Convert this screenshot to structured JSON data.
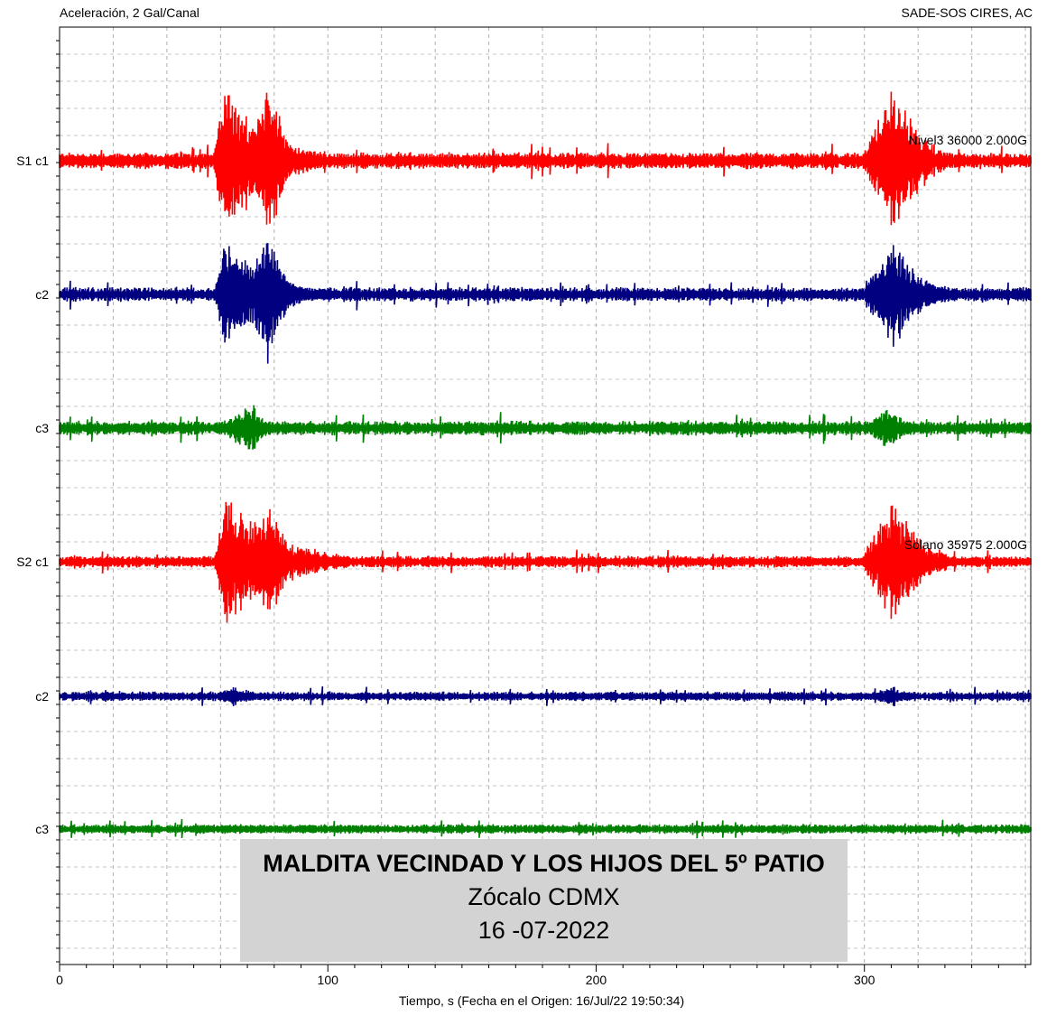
{
  "header": {
    "left": "Aceleración, 2 Gal/Canal",
    "right": "SADE-SOS  CIRES, AC"
  },
  "caption": {
    "line1": "MALDITA VECINDAD Y LOS HIJOS DEL 5º PATIO",
    "line2": "Zócalo CDMX",
    "line3": "16 -07-2022"
  },
  "chart_data": {
    "type": "line",
    "title": "",
    "ylabel": "Aceleración, 2 Gal/Canal",
    "xlabel": "Tiempo, s  (Fecha en el Origen: 16/Jul/22 19:50:34)",
    "xlim": [
      0,
      362
    ],
    "x_ticks": [
      0,
      100,
      200,
      300
    ],
    "grid": true,
    "station_labels": [
      {
        "station": "S1",
        "text": "Nivel3 36000 2.000G"
      },
      {
        "station": "S2",
        "text": "Solano 35975 2.000G"
      }
    ],
    "series": [
      {
        "label": "S1 c1",
        "color": "#ff0000",
        "baseline_amp": 7,
        "events": [
          {
            "x": [
              57,
              102
            ],
            "peak_x": 62,
            "peak_amp": 96
          },
          {
            "x": [
              298,
              335
            ],
            "peak_x": 311,
            "peak_amp": 92
          }
        ],
        "extra_peaks": [
          {
            "x": 78,
            "amp": 88
          }
        ]
      },
      {
        "label": "c2",
        "color": "#000080",
        "baseline_amp": 6,
        "events": [
          {
            "x": [
              57,
              102
            ],
            "peak_x": 62,
            "peak_amp": 70
          },
          {
            "x": [
              298,
              335
            ],
            "peak_x": 311,
            "peak_amp": 66
          }
        ],
        "extra_peaks": [
          {
            "x": 78,
            "amp": 80
          }
        ]
      },
      {
        "label": "c3",
        "color": "#008000",
        "baseline_amp": 6,
        "events": [
          {
            "x": [
              57,
              85
            ],
            "peak_x": 72,
            "peak_amp": 30
          },
          {
            "x": [
              298,
              325
            ],
            "peak_x": 309,
            "peak_amp": 26
          }
        ],
        "extra_peaks": []
      },
      {
        "label": "S2 c1",
        "color": "#ff0000",
        "baseline_amp": 5,
        "events": [
          {
            "x": [
              57,
              110
            ],
            "peak_x": 62,
            "peak_amp": 80
          },
          {
            "x": [
              298,
              335
            ],
            "peak_x": 311,
            "peak_amp": 76
          }
        ],
        "extra_peaks": [
          {
            "x": 78,
            "amp": 72
          }
        ]
      },
      {
        "label": "c2",
        "color": "#000080",
        "baseline_amp": 4,
        "events": [
          {
            "x": [
              57,
              85
            ],
            "peak_x": 65,
            "peak_amp": 14
          },
          {
            "x": [
              298,
              325
            ],
            "peak_x": 311,
            "peak_amp": 12
          }
        ],
        "extra_peaks": []
      },
      {
        "label": "c3",
        "color": "#008000",
        "baseline_amp": 4,
        "events": [
          {
            "x": [
              60,
              80
            ],
            "peak_x": 72,
            "peak_amp": 6
          },
          {
            "x": [
              300,
              320
            ],
            "peak_x": 310,
            "peak_amp": 6
          }
        ],
        "extra_peaks": []
      }
    ]
  }
}
